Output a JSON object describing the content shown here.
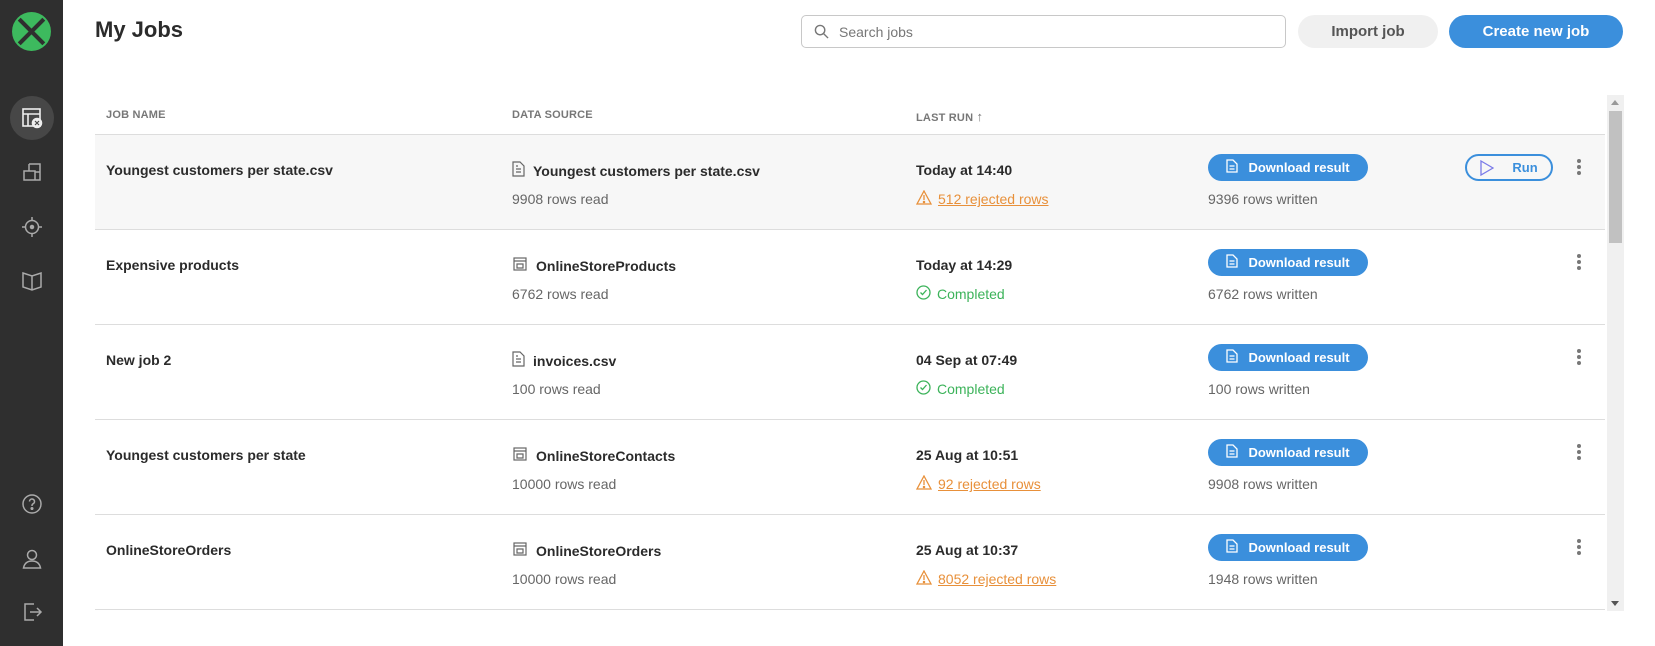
{
  "header": {
    "title": "My Jobs",
    "search_placeholder": "Search jobs",
    "import_label": "Import job",
    "create_label": "Create new job"
  },
  "columns": {
    "job_name": "JOB NAME",
    "data_source": "DATA SOURCE",
    "last_run": "LAST RUN"
  },
  "colors": {
    "accent": "#3b8fdc",
    "warning": "#e8903a",
    "success": "#3cb35a",
    "sidebar": "#2f2f2f",
    "logo": "#3dba5e"
  },
  "sidebar": {
    "items": [
      "jobs-icon",
      "datasources-icon",
      "target-icon",
      "docs-book-icon",
      "help-icon",
      "user-icon",
      "logout-icon"
    ]
  },
  "download_label": "Download result",
  "run_label": "Run",
  "jobs": [
    {
      "name": "Youngest customers per state.csv",
      "source": "Youngest customers per state.csv",
      "source_icon": "file",
      "rows_read": "9908 rows read",
      "last_run": "Today at 14:40",
      "status": "512 rejected rows",
      "status_type": "warning",
      "rows_written": "9396 rows written"
    },
    {
      "name": "Expensive products",
      "source": "OnlineStoreProducts",
      "source_icon": "table",
      "rows_read": "6762 rows read",
      "last_run": "Today at 14:29",
      "status": "Completed",
      "status_type": "success",
      "rows_written": "6762 rows written"
    },
    {
      "name": "New job 2",
      "source": "invoices.csv",
      "source_icon": "file",
      "rows_read": "100 rows read",
      "last_run": "04 Sep at 07:49",
      "status": "Completed",
      "status_type": "success",
      "rows_written": "100 rows written"
    },
    {
      "name": "Youngest customers per state",
      "source": "OnlineStoreContacts",
      "source_icon": "table",
      "rows_read": "10000 rows read",
      "last_run": "25 Aug at 10:51",
      "status": "92 rejected rows",
      "status_type": "warning",
      "rows_written": "9908 rows written"
    },
    {
      "name": "OnlineStoreOrders",
      "source": "OnlineStoreOrders",
      "source_icon": "table",
      "rows_read": "10000 rows read",
      "last_run": "25 Aug at 10:37",
      "status": "8052 rejected rows",
      "status_type": "warning",
      "rows_written": "1948 rows written"
    }
  ]
}
